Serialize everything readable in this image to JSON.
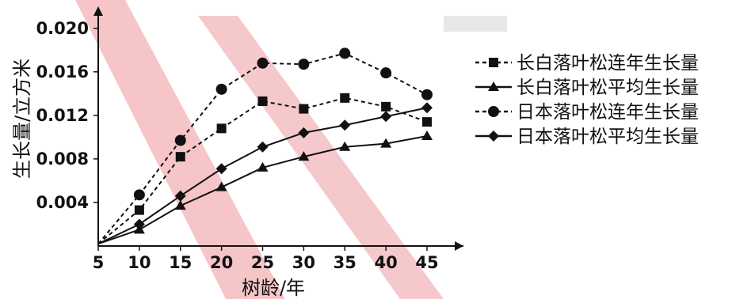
{
  "chart_data": {
    "type": "line",
    "xlabel": "树龄/年",
    "ylabel": "生长量/立方米",
    "x_ticks": [
      5,
      10,
      15,
      20,
      25,
      30,
      35,
      40,
      45
    ],
    "y_ticks": [
      "0.004",
      "0.008",
      "0.012",
      "0.016",
      "0.020"
    ],
    "xlim": [
      5,
      45
    ],
    "ylim": [
      0,
      0.021
    ],
    "grid": false,
    "legend_position": "right",
    "x": [
      5,
      10,
      15,
      20,
      25,
      30,
      35,
      40,
      45
    ],
    "series": [
      {
        "name": "长白落叶松连年生长量",
        "marker": "square",
        "dashed": true,
        "values": [
          0.0002,
          0.0033,
          0.0082,
          0.0108,
          0.0133,
          0.0126,
          0.0136,
          0.0128,
          0.0114
        ]
      },
      {
        "name": "长白落叶松平均生长量",
        "marker": "triangle",
        "dashed": false,
        "values": [
          0.0002,
          0.0015,
          0.0037,
          0.0054,
          0.0072,
          0.0082,
          0.0091,
          0.0094,
          0.0101
        ]
      },
      {
        "name": "日本落叶松连年生长量",
        "marker": "circle",
        "dashed": true,
        "values": [
          0.0002,
          0.0047,
          0.0097,
          0.0144,
          0.0168,
          0.0167,
          0.0177,
          0.0159,
          0.0139
        ]
      },
      {
        "name": "日本落叶松平均生长量",
        "marker": "diamond",
        "dashed": false,
        "values": [
          0.0002,
          0.002,
          0.0046,
          0.0071,
          0.0091,
          0.0104,
          0.0111,
          0.0119,
          0.0127
        ]
      }
    ]
  }
}
